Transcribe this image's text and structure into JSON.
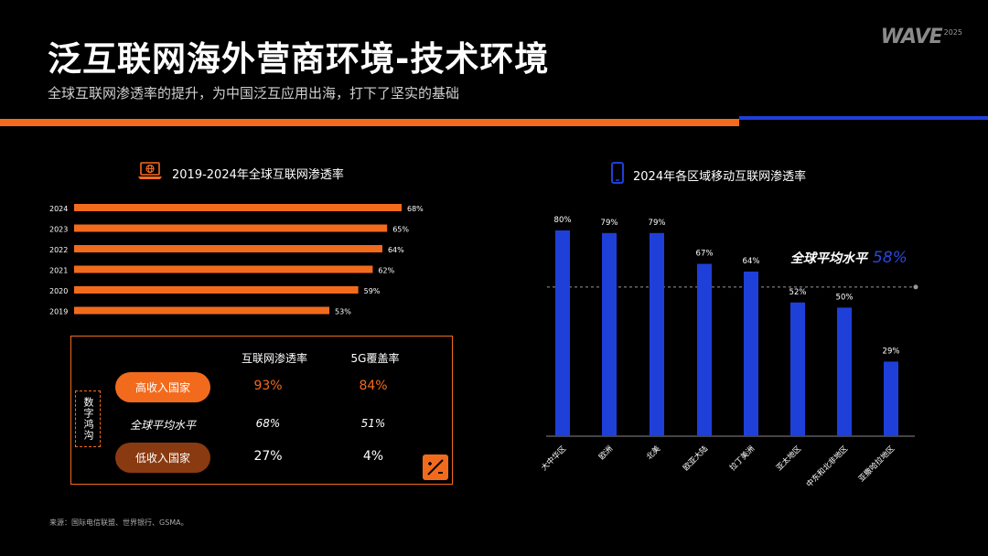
{
  "header": {
    "title": "泛互联网海外营商环境-技术环境",
    "subtitle": "全球互联网渗透率的提升，为中国泛互应用出海，打下了坚实的基础",
    "logo_text": "WAVE",
    "logo_year": "2025"
  },
  "colors": {
    "orange": "#f26b1d",
    "blue": "#1f3fd9",
    "dark_orange": "#8a3a10"
  },
  "icons": {
    "left_section": "laptop-globe-icon",
    "right_section": "smartphone-icon",
    "table_corner": "expand-icon"
  },
  "chart_data": [
    {
      "type": "bar",
      "orientation": "horizontal",
      "title": "2019-2024年全球互联网渗透率",
      "categories": [
        "2024",
        "2023",
        "2022",
        "2021",
        "2020",
        "2019"
      ],
      "values": [
        68,
        65,
        64,
        62,
        59,
        53
      ],
      "value_labels": [
        "68%",
        "65%",
        "64%",
        "62%",
        "59%",
        "53%"
      ],
      "color": "#f26b1d"
    },
    {
      "type": "bar",
      "orientation": "vertical",
      "title": "2024年各区域移动互联网渗透率",
      "categories": [
        "大中华区",
        "欧洲",
        "北美",
        "欧亚大陆",
        "拉丁美洲",
        "亚太地区",
        "中东和北非地区",
        "亚撒哈拉地区"
      ],
      "values": [
        80,
        79,
        79,
        67,
        64,
        52,
        50,
        29
      ],
      "value_labels": [
        "80%",
        "79%",
        "79%",
        "67%",
        "64%",
        "52%",
        "50%",
        "29%"
      ],
      "reference_line": {
        "label": "全球平均水平",
        "value": 58,
        "value_label": "58%"
      },
      "color": "#1f3fd9"
    }
  ],
  "table": {
    "col_headers": [
      "互联网渗透率",
      "5G覆盖率"
    ],
    "side_label": "数字鸿沟",
    "rows": [
      {
        "label": "高收入国家",
        "values": [
          "93%",
          "84%"
        ]
      },
      {
        "label": "全球平均水平",
        "values": [
          "68%",
          "51%"
        ]
      },
      {
        "label": "低收入国家",
        "values": [
          "27%",
          "4%"
        ]
      }
    ]
  },
  "source": "来源：国际电信联盟、世界银行、GSMA。"
}
